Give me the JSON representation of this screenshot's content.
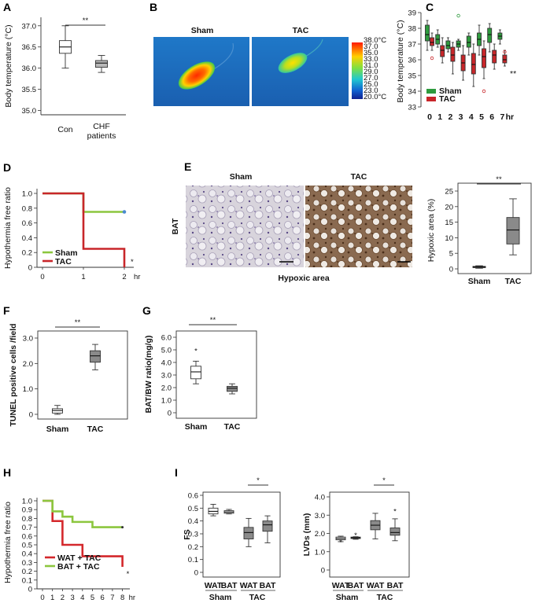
{
  "chart_data": [
    {
      "panel": "A",
      "type": "box",
      "ylabel": "Body temperature (°C)",
      "ylim": [
        35.0,
        37.0
      ],
      "yticks": [
        "37.0",
        "36.5",
        "36.0",
        "35.5",
        "35.0"
      ],
      "categories": [
        "Con",
        "CHF",
        "patients"
      ],
      "boxes": [
        {
          "name": "Con",
          "whisker_low": 36.0,
          "q1": 36.35,
          "median": 36.5,
          "q3": 36.65,
          "whisker_high": 37.0,
          "fill": "#ffffff"
        },
        {
          "name": "CHF patients",
          "whisker_low": 35.9,
          "q1": 36.02,
          "median": 36.12,
          "q3": 36.18,
          "whisker_high": 36.3,
          "fill": "#b8b8b8"
        }
      ],
      "significance": "**"
    },
    {
      "panel": "B",
      "type": "image",
      "labels": [
        "Sham",
        "TAC"
      ],
      "colorbar": [
        "38.0°C",
        "37.0",
        "35.0",
        "33.0",
        "31.0",
        "29.0",
        "27.0",
        "25.0",
        "23.0",
        "20.0°C"
      ]
    },
    {
      "panel": "C",
      "type": "box",
      "ylabel": "Body temperature (°C)",
      "ylim": [
        33,
        39
      ],
      "yticks": [
        "39",
        "38",
        "37",
        "36",
        "35",
        "34",
        "33"
      ],
      "x": [
        "0",
        "1",
        "2",
        "3",
        "4",
        "5",
        "6",
        "7"
      ],
      "xunit": "hr",
      "series": [
        {
          "name": "Sham",
          "color": "#2e9b3e",
          "boxes": [
            [
              36.6,
              37.2,
              37.6,
              38.2,
              38.5
            ],
            [
              36.8,
              37.0,
              37.3,
              37.6,
              37.9
            ],
            [
              36.5,
              36.7,
              36.9,
              37.2,
              37.4
            ],
            [
              36.6,
              36.8,
              37.0,
              37.2,
              37.3
            ],
            [
              36.3,
              36.8,
              37.1,
              37.5,
              37.7
            ],
            [
              36.3,
              36.9,
              37.3,
              37.7,
              38.2
            ],
            [
              36.5,
              37.1,
              37.6,
              38.0,
              38.3
            ],
            [
              37.0,
              37.3,
              37.5,
              37.7,
              37.9
            ]
          ],
          "outliers": [
            [
              3,
              38.8
            ]
          ]
        },
        {
          "name": "TAC",
          "color": "#c8262a",
          "boxes": [
            [
              36.6,
              36.9,
              37.1,
              37.4,
              37.7
            ],
            [
              35.8,
              36.2,
              36.6,
              36.9,
              37.4
            ],
            [
              35.1,
              35.9,
              36.3,
              36.8,
              37.1
            ],
            [
              34.7,
              35.3,
              35.8,
              36.3,
              36.9
            ],
            [
              34.3,
              35.1,
              35.7,
              36.4,
              37.0
            ],
            [
              34.8,
              35.5,
              36.2,
              36.7,
              37.2
            ],
            [
              35.4,
              35.8,
              36.3,
              36.6,
              37.0
            ],
            [
              35.6,
              35.8,
              36.0,
              36.3,
              36.6
            ]
          ],
          "outliers": [
            [
              0,
              36.1
            ],
            [
              5,
              34.0
            ],
            [
              7,
              36.5
            ]
          ]
        }
      ],
      "significance": "**"
    },
    {
      "panel": "D",
      "type": "step",
      "ylabel": "Hypothermia free ratio",
      "ylim": [
        0,
        1.0
      ],
      "yticks": [
        "1.0",
        "0.8",
        "0.6",
        "0.4",
        "0.2",
        "0"
      ],
      "xticks": [
        "0",
        "1",
        "2"
      ],
      "xunit": "hr",
      "series": [
        {
          "name": "Sham",
          "color": "#8cc63e",
          "points": [
            [
              0,
              1.0
            ],
            [
              1,
              1.0
            ],
            [
              1,
              0.75
            ],
            [
              2,
              0.75
            ]
          ]
        },
        {
          "name": "TAC",
          "color": "#c8262a",
          "points": [
            [
              0,
              1.0
            ],
            [
              1,
              1.0
            ],
            [
              1,
              0.25
            ],
            [
              2,
              0.25
            ],
            [
              2,
              0.0
            ]
          ]
        }
      ],
      "significance": "*"
    },
    {
      "panel": "E",
      "type": "box",
      "image_labels": [
        "Sham",
        "TAC"
      ],
      "tissue_label": "BAT",
      "caption": "Hypoxic area",
      "ylabel": "Hypoxic area (%)",
      "ylim": [
        0,
        25
      ],
      "yticks": [
        "25",
        "20",
        "15",
        "10",
        "5",
        "0"
      ],
      "categories": [
        "Sham",
        "TAC"
      ],
      "boxes": [
        {
          "name": "Sham",
          "whisker_low": 0.2,
          "q1": 0.4,
          "median": 0.6,
          "q3": 0.8,
          "whisker_high": 1.0,
          "fill": "#b8b8b8"
        },
        {
          "name": "TAC",
          "whisker_low": 4.5,
          "q1": 8.0,
          "median": 12.5,
          "q3": 16.5,
          "whisker_high": 22.5,
          "fill": "#8a8a8a"
        }
      ],
      "significance": "**"
    },
    {
      "panel": "F",
      "type": "box",
      "ylabel": "TUNEL positive cells /field",
      "ylim": [
        0,
        3.0
      ],
      "yticks": [
        "3.0",
        "2.0",
        "1.0",
        "0"
      ],
      "categories": [
        "Sham",
        "TAC"
      ],
      "boxes": [
        {
          "name": "Sham",
          "whisker_low": 0.0,
          "q1": 0.05,
          "median": 0.15,
          "q3": 0.22,
          "whisker_high": 0.35,
          "fill": "#ffffff"
        },
        {
          "name": "TAC",
          "whisker_low": 1.75,
          "q1": 2.05,
          "median": 2.3,
          "q3": 2.5,
          "whisker_high": 2.75,
          "fill": "#8a8a8a"
        }
      ],
      "significance": "**"
    },
    {
      "panel": "G",
      "type": "box",
      "ylabel": "BAT/BW ratio(mg/g)",
      "ylim": [
        0,
        6.0
      ],
      "yticks": [
        "6.0",
        "5.0",
        "4.0",
        "3.0",
        "2.0",
        "1.0",
        "0"
      ],
      "categories": [
        "Sham",
        "TAC"
      ],
      "boxes": [
        {
          "name": "Sham",
          "whisker_low": 2.3,
          "q1": 2.7,
          "median": 3.25,
          "q3": 3.7,
          "whisker_high": 4.1,
          "fill": "#ffffff",
          "outliers": [
            4.9
          ]
        },
        {
          "name": "TAC",
          "whisker_low": 1.5,
          "q1": 1.7,
          "median": 1.95,
          "q3": 2.1,
          "whisker_high": 2.3,
          "fill": "#8a8a8a"
        }
      ],
      "significance": "**"
    },
    {
      "panel": "H",
      "type": "step",
      "ylabel": "Hypothermia free ratio",
      "ylim": [
        0,
        1.0
      ],
      "yticks": [
        "1.0",
        "0.9",
        "0.8",
        "0.7",
        "0.6",
        "0.5",
        "0.4",
        "0.3",
        "0.2",
        "0.1",
        "0"
      ],
      "xticks": [
        "0",
        "1",
        "2",
        "3",
        "4",
        "5",
        "6",
        "7",
        "8"
      ],
      "xunit": "hr",
      "series": [
        {
          "name": "WAT + TAC",
          "color": "#d4282c",
          "points": [
            [
              0,
              1.0
            ],
            [
              1,
              1.0
            ],
            [
              1,
              0.77
            ],
            [
              2,
              0.77
            ],
            [
              2,
              0.5
            ],
            [
              4,
              0.5
            ],
            [
              4,
              0.37
            ],
            [
              8,
              0.37
            ],
            [
              8,
              0.25
            ]
          ]
        },
        {
          "name": "BAT + TAC",
          "color": "#8cc63e",
          "points": [
            [
              0,
              1.0
            ],
            [
              1,
              1.0
            ],
            [
              1,
              0.88
            ],
            [
              2,
              0.88
            ],
            [
              2,
              0.82
            ],
            [
              3,
              0.82
            ],
            [
              3,
              0.76
            ],
            [
              5,
              0.76
            ],
            [
              5,
              0.7
            ],
            [
              8,
              0.7
            ]
          ]
        }
      ],
      "significance": "*"
    },
    {
      "panel": "I",
      "type": "box",
      "subplots": [
        {
          "ylabel": "FS",
          "ylim": [
            0,
            0.6
          ],
          "yticks": [
            "0.6",
            "0.5",
            "0.4",
            "0.3",
            "0.2",
            "0.1",
            "0"
          ],
          "categories": [
            "WAT",
            "BAT",
            "WAT",
            "BAT"
          ],
          "groups": [
            "Sham",
            "TAC"
          ],
          "boxes": [
            {
              "name": "Sham WAT",
              "whisker_low": 0.44,
              "q1": 0.455,
              "median": 0.475,
              "q3": 0.5,
              "whisker_high": 0.53,
              "fill": "#ffffff"
            },
            {
              "name": "Sham BAT",
              "whisker_low": 0.455,
              "q1": 0.46,
              "median": 0.47,
              "q3": 0.48,
              "whisker_high": 0.49,
              "fill": "#ffffff"
            },
            {
              "name": "TAC WAT",
              "whisker_low": 0.2,
              "q1": 0.26,
              "median": 0.31,
              "q3": 0.35,
              "whisker_high": 0.42,
              "fill": "#8a8a8a"
            },
            {
              "name": "TAC BAT",
              "whisker_low": 0.23,
              "q1": 0.32,
              "median": 0.37,
              "q3": 0.4,
              "whisker_high": 0.44,
              "fill": "#8a8a8a"
            }
          ],
          "significance": "*"
        },
        {
          "ylabel": "LVDs (mm)",
          "ylim": [
            0,
            4.0
          ],
          "yticks": [
            "4.0",
            "3.0",
            "2.0",
            "1.0",
            "0"
          ],
          "categories": [
            "WAT",
            "BAT",
            "WAT",
            "BAT"
          ],
          "groups": [
            "Sham",
            "TAC"
          ],
          "boxes": [
            {
              "name": "Sham WAT",
              "whisker_low": 1.55,
              "q1": 1.65,
              "median": 1.72,
              "q3": 1.8,
              "whisker_high": 1.85,
              "fill": "#ffffff",
              "outliers": [
                1.5
              ]
            },
            {
              "name": "Sham BAT",
              "whisker_low": 1.68,
              "q1": 1.72,
              "median": 1.76,
              "q3": 1.8,
              "whisker_high": 1.82,
              "fill": "#ffffff",
              "outliers": [
                1.9
              ]
            },
            {
              "name": "TAC WAT",
              "whisker_low": 1.7,
              "q1": 2.2,
              "median": 2.45,
              "q3": 2.7,
              "whisker_high": 3.1,
              "fill": "#8a8a8a"
            },
            {
              "name": "TAC BAT",
              "whisker_low": 1.6,
              "q1": 1.9,
              "median": 2.05,
              "q3": 2.3,
              "whisker_high": 2.8,
              "fill": "#8a8a8a",
              "outliers": [
                3.2
              ]
            }
          ],
          "significance": "*"
        }
      ]
    }
  ]
}
